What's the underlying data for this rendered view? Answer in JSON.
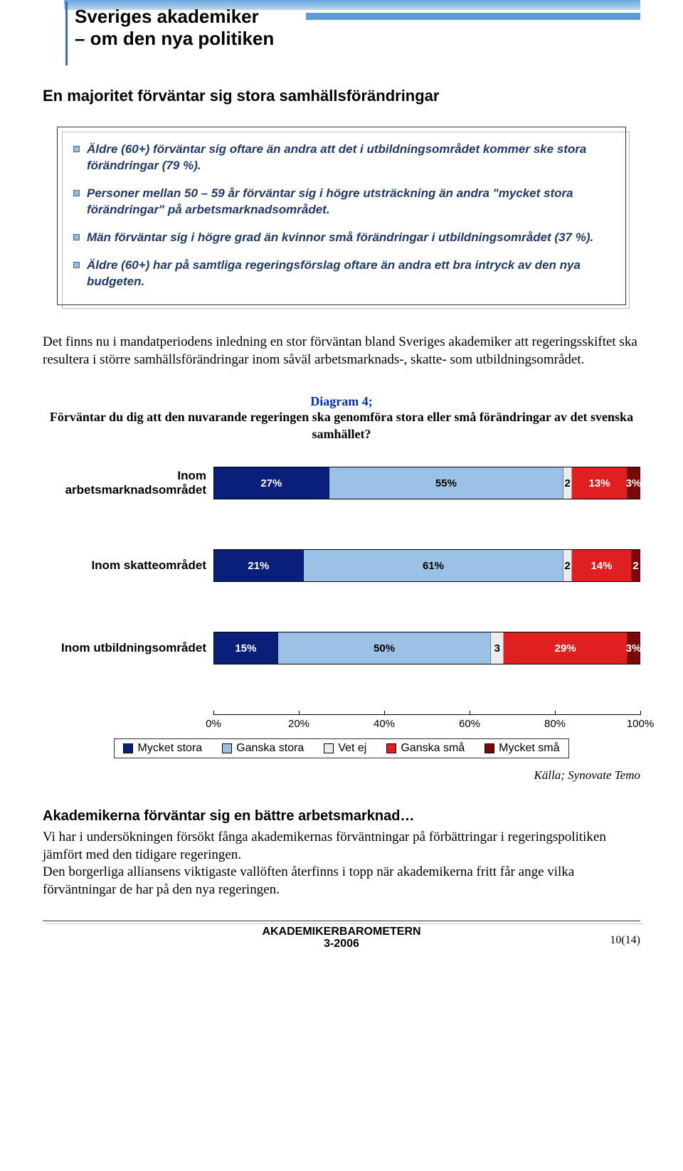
{
  "header": {
    "title_line1": "Sveriges akademiker",
    "title_line2": "– om den nya politiken"
  },
  "section": {
    "heading": "En majoritet förväntar sig stora samhällsförändringar",
    "bullets": [
      "Äldre (60+) förväntar sig oftare än andra att det i utbildningsområdet kommer ske stora förändringar (79 %).",
      "Personer mellan 50 – 59 år förväntar sig i högre utsträckning än andra \"mycket stora förändringar\" på arbetsmarknadsområdet.",
      "Män förväntar sig i högre grad än kvinnor små förändringar i utbildningsområdet (37 %).",
      "Äldre (60+) har på samtliga regeringsförslag oftare än andra ett bra intryck av den nya budgeten."
    ],
    "body": "Det finns nu i mandatperiodens inledning en stor förväntan bland Sveriges akademiker att regeringsskiftet ska resultera i större samhällsförändringar inom såväl arbetsmarknads-, skatte- som utbildningsområdet."
  },
  "chart": {
    "caption_label": "Diagram 4;",
    "caption_question": "Förväntar du dig att den nuvarande regeringen ska genomföra stora eller små förändringar av det svenska samhället?",
    "colors": {
      "mycket_stora": "#0a1f7a",
      "ganska_stora": "#9cc1e6",
      "vet_ej": "#ececec",
      "ganska_sma": "#e02020",
      "mycket_sma": "#7a0a0a"
    },
    "rows": [
      {
        "label": "Inom arbetsmarknadsområdet",
        "values": [
          27,
          55,
          2,
          13,
          3
        ],
        "labels": [
          "27%",
          "55%",
          "2",
          "13%",
          "3%"
        ]
      },
      {
        "label": "Inom skatteområdet",
        "values": [
          21,
          61,
          2,
          14,
          2
        ],
        "labels": [
          "21%",
          "61%",
          "2",
          "14%",
          "2"
        ]
      },
      {
        "label": "Inom utbildningsområdet",
        "values": [
          15,
          50,
          3,
          29,
          3
        ],
        "labels": [
          "15%",
          "50%",
          "3",
          "29%",
          "3%"
        ]
      }
    ],
    "axis": {
      "ticks": [
        0,
        20,
        40,
        60,
        80,
        100
      ],
      "labels": [
        "0%",
        "20%",
        "40%",
        "60%",
        "80%",
        "100%"
      ]
    },
    "legend": [
      "Mycket stora",
      "Ganska stora",
      "Vet ej",
      "Ganska små",
      "Mycket små"
    ],
    "source": "Källa; Synovate Temo"
  },
  "subsection": {
    "heading": "Akademikerna förväntar sig en bättre arbetsmarknad…",
    "body": "Vi har i undersökningen försökt fånga akademikernas förväntningar på förbättringar i regeringspolitiken jämfört med den tidigare regeringen.\nDen borgerliga alliansens viktigaste vallöften återfinns i topp när akademikerna fritt får ange vilka förväntningar de har på den nya regeringen."
  },
  "footer": {
    "line1": "AKADEMIKERBAROMETERN",
    "line2": "3-2006",
    "page": "10(14)"
  },
  "style": {
    "bullet_color": "#1f3a68",
    "title_fontsize": 26,
    "body_fontsize": 19
  }
}
